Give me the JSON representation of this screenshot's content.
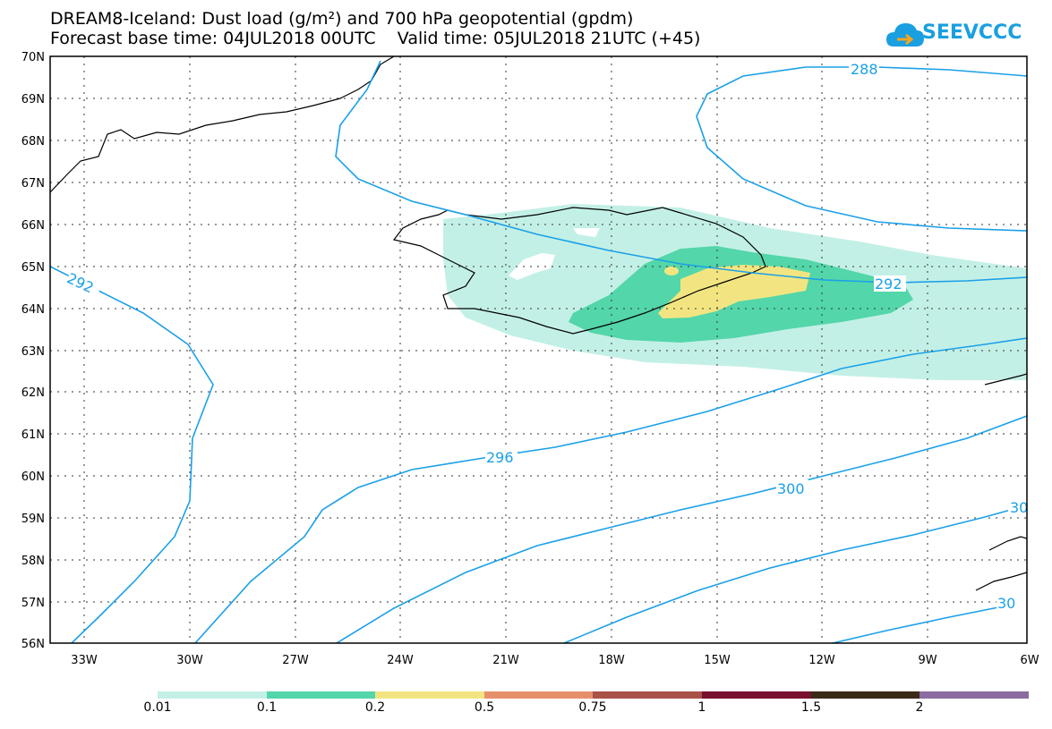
{
  "title": {
    "line1": "DREAM8-Iceland: Dust load (g/m²) and 700 hPa geopotential (gpdm)",
    "line2": "Forecast base time: 04JUL2018 00UTC    Valid time: 05JUL2018 21UTC (+45)"
  },
  "logo": {
    "text": "SEEVCCC",
    "icon": "cloud-icon"
  },
  "map": {
    "lat_labels": [
      "70N",
      "69N",
      "68N",
      "67N",
      "66N",
      "65N",
      "64N",
      "63N",
      "62N",
      "61N",
      "60N",
      "59N",
      "58N",
      "57N",
      "56N"
    ],
    "lon_labels": [
      "33W",
      "30W",
      "27W",
      "24W",
      "21W",
      "18W",
      "15W",
      "12W",
      "9W",
      "6W"
    ],
    "contour_labels": [
      "288",
      "292",
      "292",
      "296",
      "300",
      "30",
      "30"
    ],
    "contour_color": "#1aa0e8"
  },
  "legend": {
    "labels": [
      "0.01",
      "0.1",
      "0.2",
      "0.5",
      "0.75",
      "1",
      "1.5",
      "2"
    ],
    "colors": [
      "#c3f0e6",
      "#53d6a9",
      "#f2e581",
      "#e6906b",
      "#a8524a",
      "#7a1030",
      "#3a2a18",
      "#8b6ba0"
    ]
  }
}
